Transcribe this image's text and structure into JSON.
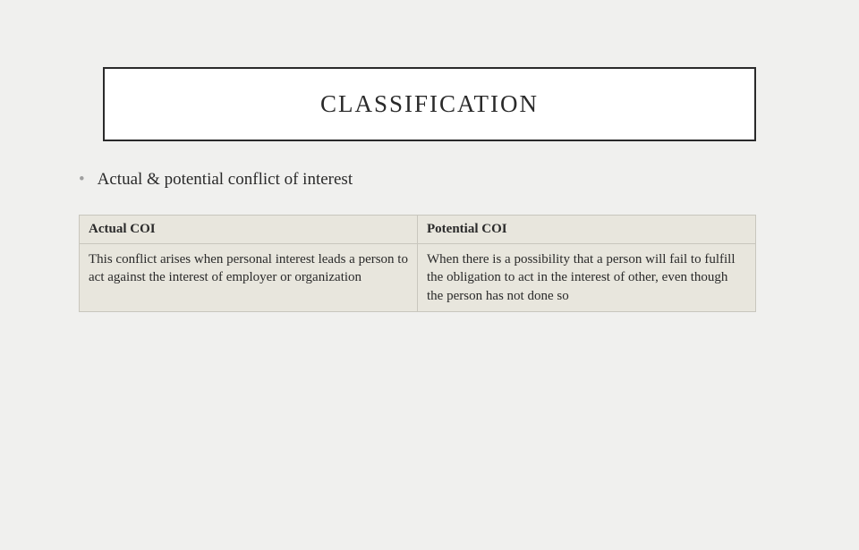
{
  "slide": {
    "title": "CLASSIFICATION",
    "title_box": {
      "background_color": "#ffffff",
      "border_color": "#2a2a2a",
      "border_width": 2
    },
    "bullet": {
      "marker": "•",
      "marker_color": "#a0a0a0",
      "text": "Actual & potential conflict of interest",
      "font_size": 19
    },
    "table": {
      "type": "table",
      "background_color": "#e8e6dd",
      "border_color": "#c8c6bd",
      "columns": [
        {
          "header": "Actual COI",
          "width_pct": 50
        },
        {
          "header": "Potential COI",
          "width_pct": 50
        }
      ],
      "rows": [
        {
          "col1": "This conflict arises when personal interest leads a person to act against the interest of employer or organization",
          "col2": "When there is a possibility that a person will fail to fulfill the obligation to act in the interest of other, even though the person has not done so"
        }
      ],
      "header_font_size": 15,
      "cell_font_size": 15
    },
    "page_background": "#f0f0ee"
  }
}
